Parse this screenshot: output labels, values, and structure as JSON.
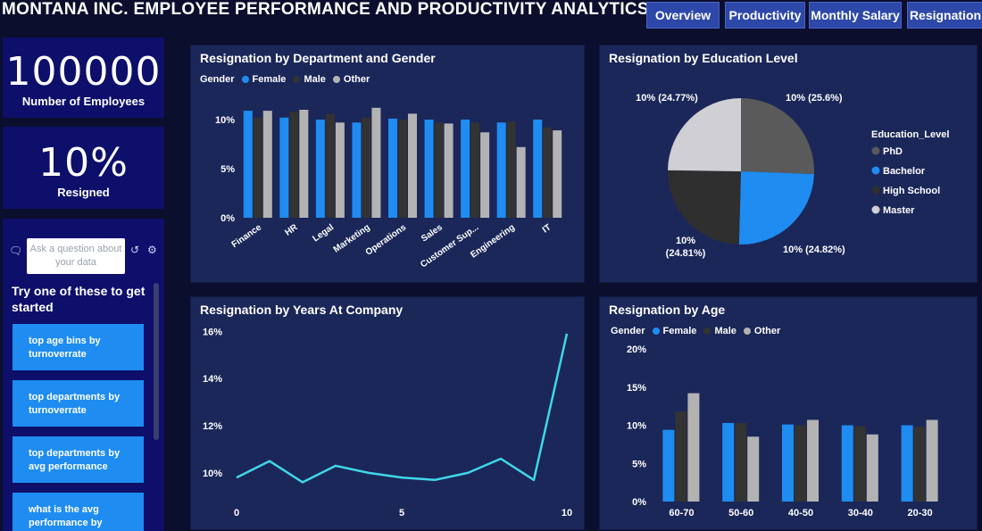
{
  "header": {
    "title": "MONTANA INC. EMPLOYEE PERFORMANCE AND PRODUCTIVITY ANALYTICS"
  },
  "nav": [
    {
      "label": "Overview"
    },
    {
      "label": "Productivity"
    },
    {
      "label": "Monthly Salary"
    },
    {
      "label": "Resignation"
    }
  ],
  "kpis": {
    "employees": {
      "value": "100000",
      "label": "Number of Employees"
    },
    "resigned": {
      "value": "10%",
      "label": "Resigned"
    }
  },
  "qa": {
    "placeholder": "Ask a question about your data",
    "hint": "Try one of these to get started",
    "suggestions": [
      "top age bins by turnoverrate",
      "top departments by turnoverrate",
      "top departments by avg performance",
      "what is the avg performance by"
    ]
  },
  "colors": {
    "female": "#1e8cf0",
    "male": "#333333",
    "other": "#b3b3b3",
    "line": "#3fd7e8",
    "phd": "#5a5a5a",
    "bachelor": "#1e8cf0",
    "high_school": "#2f2f2f",
    "master": "#cfcfd4"
  },
  "chart_data": [
    {
      "id": "dept",
      "type": "bar",
      "title": "Resignation by Department and Gender",
      "legend_title": "Gender",
      "categories": [
        "Finance",
        "HR",
        "Legal",
        "Marketing",
        "Operations",
        "Sales",
        "Customer Sup...",
        "Engineering",
        "IT"
      ],
      "series": [
        {
          "name": "Female",
          "values": [
            10.9,
            10.2,
            10.0,
            9.7,
            10.1,
            10.0,
            10.0,
            9.7,
            10.0
          ]
        },
        {
          "name": "Male",
          "values": [
            10.2,
            10.8,
            10.6,
            10.2,
            10.0,
            9.7,
            9.7,
            9.8,
            9.2
          ]
        },
        {
          "name": "Other",
          "values": [
            10.9,
            11.0,
            9.7,
            11.2,
            10.6,
            9.6,
            8.7,
            7.2,
            8.9
          ]
        }
      ],
      "yticks": [
        "0%",
        "5%",
        "10%"
      ],
      "ylim": [
        0,
        13
      ]
    },
    {
      "id": "edu",
      "type": "pie",
      "title": "Resignation by Education Level",
      "legend_title": "Education_Level",
      "slices": [
        {
          "name": "PhD",
          "value": 25.6,
          "label": "10% (25.6%)"
        },
        {
          "name": "Bachelor",
          "value": 24.82,
          "label": "10% (24.82%)"
        },
        {
          "name": "High School",
          "value": 24.81,
          "label": "10% (24.81%)"
        },
        {
          "name": "Master",
          "value": 24.77,
          "label": "10% (24.77%)"
        }
      ]
    },
    {
      "id": "years",
      "type": "line",
      "title": "Resignation by Years At Company",
      "x": [
        0,
        1,
        2,
        3,
        4,
        5,
        6,
        7,
        8,
        9,
        10
      ],
      "y": [
        9.8,
        10.5,
        9.6,
        10.3,
        10.0,
        9.8,
        9.7,
        10.0,
        10.6,
        9.7,
        15.9
      ],
      "xticks": [
        "0",
        "5",
        "10"
      ],
      "yticks": [
        "10%",
        "12%",
        "14%",
        "16%"
      ],
      "xlim": [
        0,
        10
      ],
      "ylim": [
        9.2,
        16.2
      ]
    },
    {
      "id": "age",
      "type": "bar",
      "title": "Resignation by Age",
      "legend_title": "Gender",
      "categories": [
        "60-70",
        "50-60",
        "40-50",
        "30-40",
        "20-30"
      ],
      "series": [
        {
          "name": "Female",
          "values": [
            9.4,
            10.3,
            10.1,
            10.0,
            10.0
          ]
        },
        {
          "name": "Male",
          "values": [
            11.8,
            10.3,
            10.0,
            9.9,
            9.8
          ]
        },
        {
          "name": "Other",
          "values": [
            14.2,
            8.5,
            10.7,
            8.8,
            10.7
          ]
        }
      ],
      "yticks": [
        "0%",
        "5%",
        "10%",
        "15%",
        "20%"
      ],
      "ylim": [
        0,
        20
      ]
    }
  ]
}
